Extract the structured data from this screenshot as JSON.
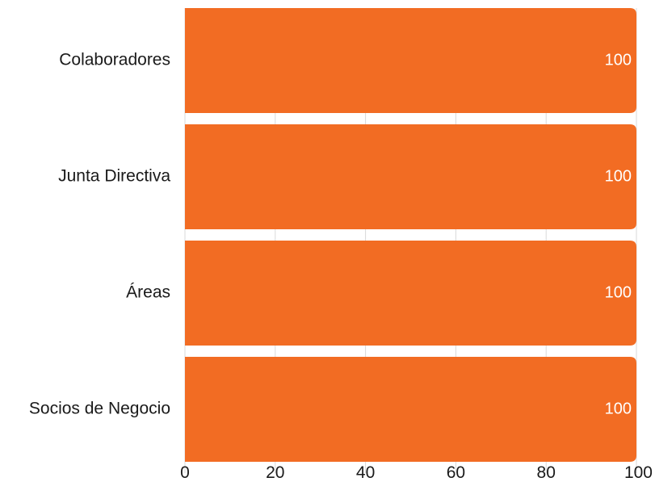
{
  "chart_data": {
    "type": "bar",
    "orientation": "horizontal",
    "categories": [
      "Colaboradores",
      "Junta Directiva",
      "Áreas",
      "Socios de Negocio"
    ],
    "values": [
      100,
      100,
      100,
      100
    ],
    "data_labels": [
      "100",
      "100",
      "100",
      "100"
    ],
    "xlim": [
      0,
      100
    ],
    "xticks": [
      0,
      20,
      40,
      60,
      80,
      100
    ],
    "xtick_labels": [
      "0",
      "20",
      "40",
      "60",
      "80",
      "100"
    ],
    "title": "",
    "xlabel": "",
    "ylabel": "",
    "grid": "vertical",
    "legend": "none",
    "colors": {
      "bar": "#F26C23",
      "grid": "#d9d9d9",
      "text": "#1a1a1a",
      "data_label": "#ffffff"
    }
  }
}
